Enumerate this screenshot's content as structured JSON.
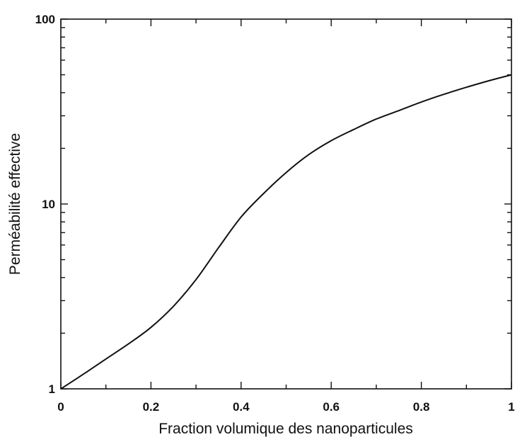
{
  "chart_data": {
    "type": "line",
    "title": "",
    "xlabel": "Fraction volumique des nanoparticules",
    "ylabel": "Perméabilité effective",
    "xlim": [
      0,
      1
    ],
    "ylim": [
      1,
      100
    ],
    "yscale": "log",
    "grid": false,
    "x_ticks": [
      0,
      0.2,
      0.4,
      0.6,
      0.8,
      1
    ],
    "x_tick_labels": [
      "0",
      "0.2",
      "0.4",
      "0.6",
      "0.8",
      "1"
    ],
    "y_ticks": [
      1,
      10,
      100
    ],
    "y_tick_labels": [
      "1",
      "10",
      "100"
    ],
    "series": [
      {
        "x": [
          0,
          0.05,
          0.1,
          0.15,
          0.2,
          0.25,
          0.3,
          0.35,
          0.4,
          0.45,
          0.5,
          0.55,
          0.6,
          0.65,
          0.7,
          0.75,
          0.8,
          0.85,
          0.9,
          0.95,
          1.0
        ],
        "values": [
          1.0,
          1.2,
          1.45,
          1.75,
          2.15,
          2.8,
          3.9,
          5.8,
          8.5,
          11.4,
          14.8,
          18.5,
          22.0,
          25.3,
          28.8,
          32.0,
          35.6,
          39.2,
          42.8,
          46.4,
          50.0
        ]
      }
    ]
  }
}
